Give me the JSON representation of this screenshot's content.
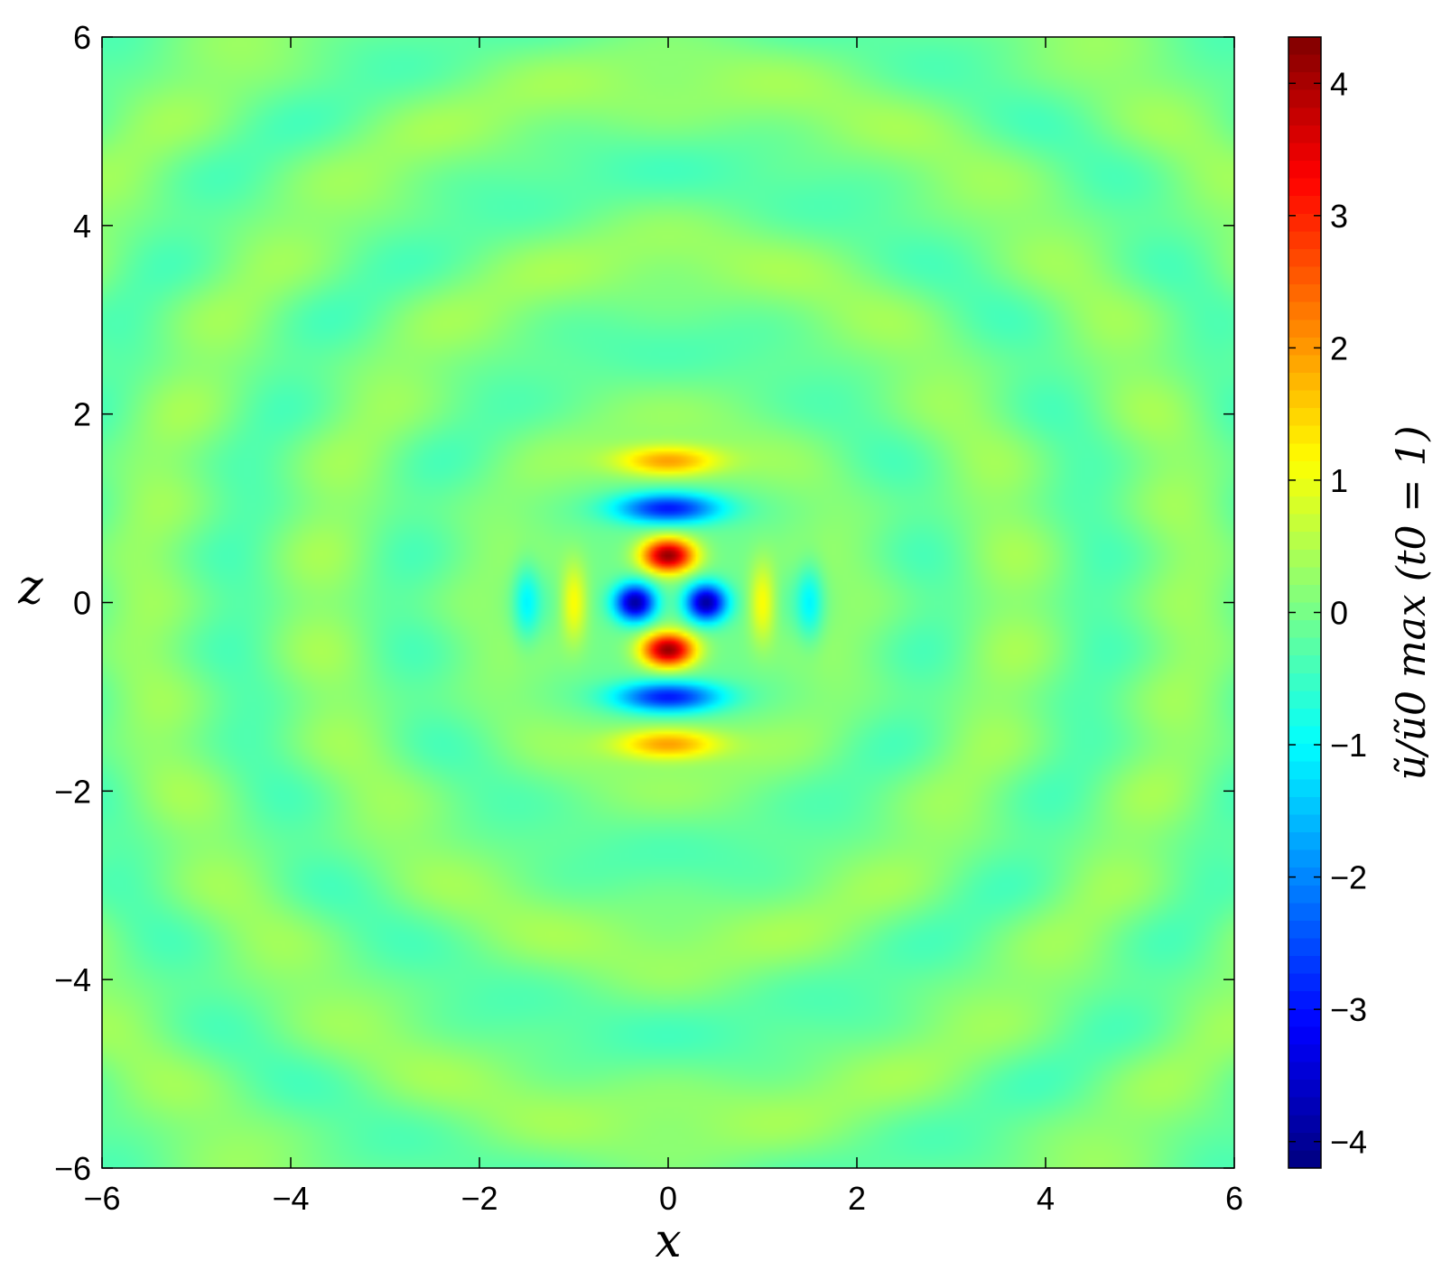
{
  "chart_data": {
    "type": "heatmap",
    "title": "",
    "xlabel": "x",
    "ylabel": "z",
    "xlim": [
      -6,
      6
    ],
    "ylim": [
      -6,
      6
    ],
    "x_ticks": [
      -6,
      -4,
      -2,
      0,
      2,
      4,
      6
    ],
    "x_tick_labels": [
      "−6",
      "−4",
      "−2",
      "0",
      "2",
      "4",
      "6"
    ],
    "y_ticks": [
      -6,
      -4,
      -2,
      0,
      2,
      4,
      6
    ],
    "y_tick_labels": [
      "−6",
      "−4",
      "−2",
      "0",
      "2",
      "4",
      "6"
    ],
    "colorbar": {
      "label": "ũ/ũ0 max  (t0 = 1)",
      "range": [
        -4.2,
        4.35
      ],
      "ticks": [
        -4,
        -3,
        -2,
        -1,
        0,
        1,
        2,
        3,
        4
      ],
      "tick_labels": [
        "−4",
        "−3",
        "−2",
        "−1",
        "0",
        "1",
        "2",
        "3",
        "4"
      ],
      "colormap": "jet"
    },
    "features": [
      {
        "x": 0,
        "z": 0.5,
        "value": 4.3,
        "shape": "peak"
      },
      {
        "x": 0,
        "z": -0.5,
        "value": 4.3,
        "shape": "peak"
      },
      {
        "x": -0.35,
        "z": 0,
        "value": -4.0,
        "shape": "trough"
      },
      {
        "x": 0.4,
        "z": 0,
        "value": -4.0,
        "shape": "trough"
      },
      {
        "x": 0,
        "z": 1.0,
        "value": -3.0,
        "shape": "trough"
      },
      {
        "x": 0,
        "z": -1.0,
        "value": -3.0,
        "shape": "trough"
      },
      {
        "x": 0,
        "z": 1.5,
        "value": 2.0,
        "shape": "peak"
      },
      {
        "x": 0,
        "z": -1.5,
        "value": 2.0,
        "shape": "peak"
      },
      {
        "x": -1.0,
        "z": 0,
        "value": 1.3,
        "shape": "peak"
      },
      {
        "x": 1.0,
        "z": 0,
        "value": 1.3,
        "shape": "peak"
      },
      {
        "x": -1.5,
        "z": 0,
        "value": -1.0,
        "shape": "trough"
      },
      {
        "x": 1.5,
        "z": 0,
        "value": -1.0,
        "shape": "trough"
      }
    ]
  }
}
